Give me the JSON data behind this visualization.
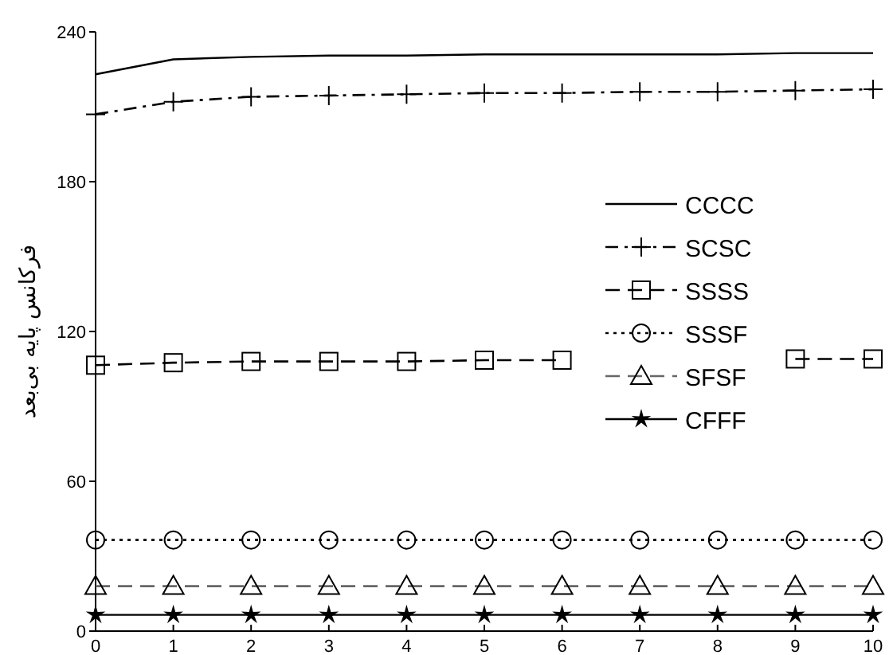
{
  "chart_data": {
    "type": "line",
    "ylabel": "فرکانس پایه بی‌بعد",
    "x": [
      0,
      1,
      2,
      3,
      4,
      5,
      6,
      7,
      8,
      9,
      10
    ],
    "xlim": [
      0,
      10
    ],
    "xticks": [
      0,
      1,
      2,
      3,
      4,
      5,
      6,
      7,
      8,
      9,
      10
    ],
    "ylim": [
      0,
      240
    ],
    "yticks": [
      0,
      60,
      120,
      180,
      240
    ],
    "grid": false,
    "legend": "right",
    "series": [
      {
        "name": "CCCC",
        "color": "#000000",
        "marker": "none",
        "line_style": "solid",
        "values": [
          223,
          229,
          230,
          230.5,
          230.5,
          231,
          231,
          231,
          231,
          231.5,
          231.5
        ]
      },
      {
        "name": "SCSC",
        "color": "#000000",
        "marker": "cross",
        "line_style": "dashdot",
        "values": [
          207,
          212,
          214,
          214.5,
          215,
          215.5,
          215.5,
          216,
          216,
          216.5,
          217
        ]
      },
      {
        "name": "SSSS",
        "color": "#000000",
        "marker": "square",
        "line_style": "dashed",
        "values": [
          106.5,
          107.5,
          108,
          108,
          108,
          108.5,
          108.5,
          null,
          null,
          109,
          109
        ]
      },
      {
        "name": "SSSF",
        "color": "#000000",
        "marker": "circle",
        "line_style": "dotted",
        "values": [
          36.5,
          36.5,
          36.5,
          36.5,
          36.5,
          36.5,
          36.5,
          36.5,
          36.5,
          36.5,
          36.5
        ]
      },
      {
        "name": "SFSF",
        "color": "#666666",
        "marker": "triangle",
        "line_style": "dashed",
        "values": [
          18,
          18,
          18,
          18,
          18,
          18,
          18,
          18,
          18,
          18,
          18
        ]
      },
      {
        "name": "CFFF",
        "color": "#000000",
        "marker": "star",
        "line_style": "solid",
        "values": [
          6.5,
          6.5,
          6.5,
          6.5,
          6.5,
          6.5,
          6.5,
          6.5,
          6.5,
          6.5,
          6.5
        ]
      }
    ]
  }
}
